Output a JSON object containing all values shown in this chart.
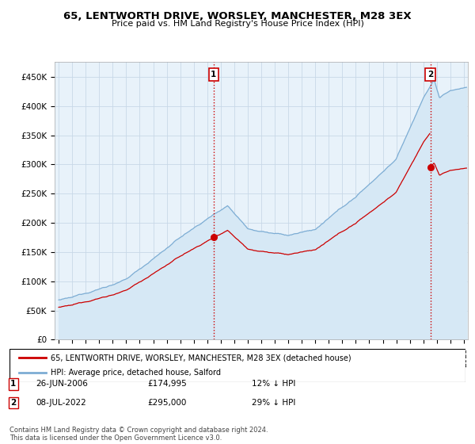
{
  "title": "65, LENTWORTH DRIVE, WORSLEY, MANCHESTER, M28 3EX",
  "subtitle": "Price paid vs. HM Land Registry's House Price Index (HPI)",
  "ylabel_ticks": [
    "£0",
    "£50K",
    "£100K",
    "£150K",
    "£200K",
    "£250K",
    "£300K",
    "£350K",
    "£400K",
    "£450K"
  ],
  "ytick_values": [
    0,
    50000,
    100000,
    150000,
    200000,
    250000,
    300000,
    350000,
    400000,
    450000
  ],
  "ylim": [
    0,
    475000
  ],
  "xlim_start": 1994.7,
  "xlim_end": 2025.3,
  "hpi_color": "#7dadd4",
  "hpi_fill_color": "#d6e8f5",
  "price_color": "#cc0000",
  "marker1_date": 2006.47,
  "marker1_price": 174995,
  "marker2_date": 2022.52,
  "marker2_price": 295000,
  "vline_color": "#cc0000",
  "vline_style": ":",
  "legend_label1": "65, LENTWORTH DRIVE, WORSLEY, MANCHESTER, M28 3EX (detached house)",
  "legend_label2": "HPI: Average price, detached house, Salford",
  "table_row1": [
    "1",
    "26-JUN-2006",
    "£174,995",
    "12% ↓ HPI"
  ],
  "table_row2": [
    "2",
    "08-JUL-2022",
    "£295,000",
    "29% ↓ HPI"
  ],
  "footer": "Contains HM Land Registry data © Crown copyright and database right 2024.\nThis data is licensed under the Open Government Licence v3.0.",
  "background_color": "#ffffff",
  "grid_color": "#c8d8e8",
  "chart_bg_color": "#e8f2fa"
}
